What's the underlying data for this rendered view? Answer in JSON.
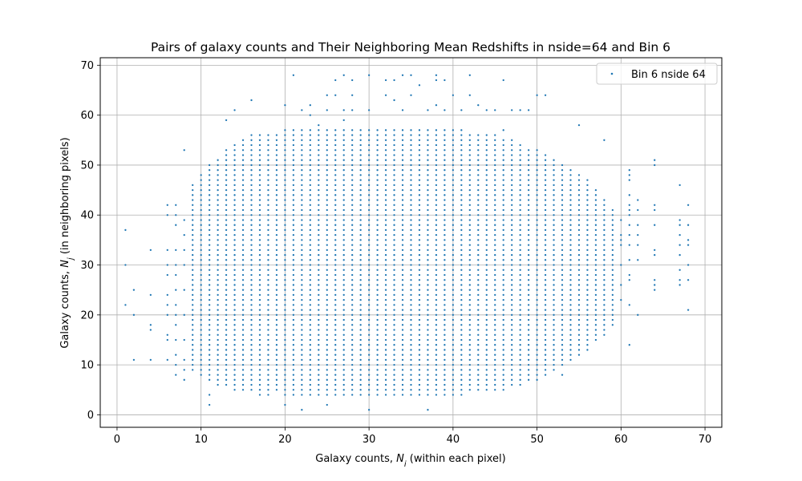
{
  "chart_data": {
    "type": "scatter",
    "title": "Pairs of galaxy counts and Their Neighboring Mean Redshifts in nside=64 and Bin 6",
    "xlabel": {
      "pre": "Galaxy counts, ",
      "var": "N",
      "sub": "i",
      "post": " (within each pixel)"
    },
    "ylabel": {
      "pre": "Galaxy counts, ",
      "var": "N",
      "sub": "j",
      "post": " (in neighboring pixels)"
    },
    "xlim": [
      -2,
      72
    ],
    "ylim": [
      -2.5,
      71.5
    ],
    "xticks": [
      0,
      10,
      20,
      30,
      40,
      50,
      60,
      70
    ],
    "yticks": [
      0,
      10,
      20,
      30,
      40,
      50,
      60,
      70
    ],
    "grid": true,
    "legend_position": "top-right",
    "series": [
      {
        "name": "Bin 6 nside 64",
        "color": "#1f77b4",
        "marker": "point",
        "points": [
          [
            1,
            37
          ],
          [
            1,
            30
          ],
          [
            1,
            22
          ],
          [
            2,
            25
          ],
          [
            2,
            20
          ],
          [
            2,
            11
          ],
          [
            4,
            33
          ],
          [
            4,
            24
          ],
          [
            4,
            18
          ],
          [
            4,
            17
          ],
          [
            4,
            11
          ],
          [
            6,
            42
          ],
          [
            6,
            40
          ],
          [
            6,
            33
          ],
          [
            6,
            30
          ],
          [
            6,
            28
          ],
          [
            6,
            24
          ],
          [
            6,
            22
          ],
          [
            6,
            20
          ],
          [
            6,
            16
          ],
          [
            6,
            15
          ],
          [
            6,
            11
          ],
          [
            7,
            42
          ],
          [
            7,
            40
          ],
          [
            7,
            38
          ],
          [
            7,
            33
          ],
          [
            7,
            30
          ],
          [
            7,
            28
          ],
          [
            7,
            25
          ],
          [
            7,
            22
          ],
          [
            7,
            20
          ],
          [
            7,
            18
          ],
          [
            7,
            15
          ],
          [
            7,
            12
          ],
          [
            7,
            10
          ],
          [
            7,
            8
          ],
          [
            8,
            53
          ],
          [
            8,
            39
          ],
          [
            8,
            36
          ],
          [
            8,
            33
          ],
          [
            8,
            30
          ],
          [
            8,
            25
          ],
          [
            8,
            20
          ],
          [
            8,
            15
          ],
          [
            8,
            11
          ],
          [
            8,
            9
          ],
          [
            8,
            7
          ],
          [
            13,
            59
          ],
          [
            14,
            61
          ],
          [
            16,
            63
          ],
          [
            20,
            62
          ],
          [
            21,
            68
          ],
          [
            22,
            61
          ],
          [
            23,
            60
          ],
          [
            23,
            62
          ],
          [
            24,
            58
          ],
          [
            25,
            61
          ],
          [
            25,
            64
          ],
          [
            26,
            67
          ],
          [
            26,
            64
          ],
          [
            27,
            68
          ],
          [
            27,
            61
          ],
          [
            27,
            59
          ],
          [
            28,
            61
          ],
          [
            28,
            67
          ],
          [
            28,
            64
          ],
          [
            30,
            68
          ],
          [
            30,
            61
          ],
          [
            32,
            67
          ],
          [
            32,
            64
          ],
          [
            33,
            63
          ],
          [
            33,
            67
          ],
          [
            34,
            68
          ],
          [
            34,
            61
          ],
          [
            35,
            68
          ],
          [
            35,
            64
          ],
          [
            36,
            66
          ],
          [
            37,
            61
          ],
          [
            38,
            68
          ],
          [
            38,
            67
          ],
          [
            38,
            62
          ],
          [
            39,
            67
          ],
          [
            39,
            61
          ],
          [
            40,
            64
          ],
          [
            41,
            61
          ],
          [
            42,
            68
          ],
          [
            42,
            64
          ],
          [
            43,
            62
          ],
          [
            44,
            61
          ],
          [
            45,
            61
          ],
          [
            46,
            67
          ],
          [
            46,
            57
          ],
          [
            47,
            61
          ],
          [
            48,
            61
          ],
          [
            49,
            61
          ],
          [
            50,
            64
          ],
          [
            51,
            64
          ],
          [
            58,
            55
          ],
          [
            55,
            58
          ],
          [
            11,
            4
          ],
          [
            11,
            2
          ],
          [
            20,
            2
          ],
          [
            22,
            1
          ],
          [
            24,
            4
          ],
          [
            25,
            2
          ],
          [
            30,
            1
          ],
          [
            33,
            4
          ],
          [
            37,
            1
          ],
          [
            40,
            6
          ],
          [
            42,
            6
          ],
          [
            17,
            4
          ],
          [
            18,
            4
          ],
          [
            38,
            8
          ],
          [
            44,
            9
          ],
          [
            46,
            9
          ],
          [
            53,
            8
          ],
          [
            60,
            39
          ],
          [
            60,
            36
          ],
          [
            60,
            35
          ],
          [
            60,
            34
          ],
          [
            60,
            30
          ],
          [
            60,
            26
          ],
          [
            60,
            23
          ],
          [
            61,
            49
          ],
          [
            61,
            48
          ],
          [
            61,
            47
          ],
          [
            61,
            44
          ],
          [
            61,
            42
          ],
          [
            61,
            41
          ],
          [
            61,
            40
          ],
          [
            61,
            38
          ],
          [
            61,
            36
          ],
          [
            61,
            34
          ],
          [
            61,
            31
          ],
          [
            61,
            28
          ],
          [
            61,
            27
          ],
          [
            61,
            22
          ],
          [
            61,
            14
          ],
          [
            62,
            43
          ],
          [
            62,
            41
          ],
          [
            62,
            38
          ],
          [
            62,
            36
          ],
          [
            62,
            34
          ],
          [
            62,
            31
          ],
          [
            62,
            20
          ],
          [
            64,
            51
          ],
          [
            64,
            50
          ],
          [
            64,
            42
          ],
          [
            64,
            41
          ],
          [
            64,
            38
          ],
          [
            64,
            33
          ],
          [
            64,
            32
          ],
          [
            64,
            27
          ],
          [
            64,
            26
          ],
          [
            64,
            25
          ],
          [
            67,
            46
          ],
          [
            67,
            39
          ],
          [
            67,
            38
          ],
          [
            67,
            36
          ],
          [
            67,
            34
          ],
          [
            67,
            32
          ],
          [
            67,
            29
          ],
          [
            67,
            27
          ],
          [
            67,
            26
          ],
          [
            68,
            42
          ],
          [
            68,
            38
          ],
          [
            68,
            35
          ],
          [
            68,
            34
          ],
          [
            68,
            30
          ],
          [
            68,
            27
          ],
          [
            68,
            21
          ]
        ],
        "dense_region": {
          "x_range": [
            9,
            59
          ],
          "fill_rows": [
            [
              9,
              9,
              46
            ],
            [
              10,
              8,
              48
            ],
            [
              11,
              7,
              50
            ],
            [
              12,
              6,
              51
            ],
            [
              13,
              6,
              53
            ],
            [
              14,
              5,
              54
            ],
            [
              15,
              5,
              55
            ],
            [
              16,
              5,
              56
            ],
            [
              17,
              5,
              56
            ],
            [
              18,
              5,
              56
            ],
            [
              19,
              5,
              56
            ],
            [
              20,
              4,
              57
            ],
            [
              21,
              4,
              57
            ],
            [
              22,
              4,
              57
            ],
            [
              23,
              4,
              57
            ],
            [
              24,
              4,
              57
            ],
            [
              25,
              4,
              57
            ],
            [
              26,
              4,
              57
            ],
            [
              27,
              4,
              57
            ],
            [
              28,
              4,
              57
            ],
            [
              29,
              4,
              57
            ],
            [
              30,
              4,
              57
            ],
            [
              31,
              4,
              57
            ],
            [
              32,
              4,
              57
            ],
            [
              33,
              4,
              57
            ],
            [
              34,
              4,
              57
            ],
            [
              35,
              4,
              57
            ],
            [
              36,
              4,
              57
            ],
            [
              37,
              4,
              57
            ],
            [
              38,
              4,
              57
            ],
            [
              39,
              4,
              57
            ],
            [
              40,
              4,
              57
            ],
            [
              41,
              4,
              57
            ],
            [
              42,
              5,
              56
            ],
            [
              43,
              5,
              56
            ],
            [
              44,
              5,
              56
            ],
            [
              45,
              5,
              56
            ],
            [
              46,
              5,
              55
            ],
            [
              47,
              6,
              55
            ],
            [
              48,
              6,
              54
            ],
            [
              49,
              7,
              53
            ],
            [
              50,
              7,
              53
            ],
            [
              51,
              8,
              52
            ],
            [
              52,
              9,
              51
            ],
            [
              53,
              10,
              50
            ],
            [
              54,
              11,
              49
            ],
            [
              55,
              12,
              48
            ],
            [
              56,
              13,
              47
            ],
            [
              57,
              15,
              45
            ],
            [
              58,
              16,
              43
            ],
            [
              59,
              18,
              41
            ]
          ]
        }
      }
    ]
  }
}
